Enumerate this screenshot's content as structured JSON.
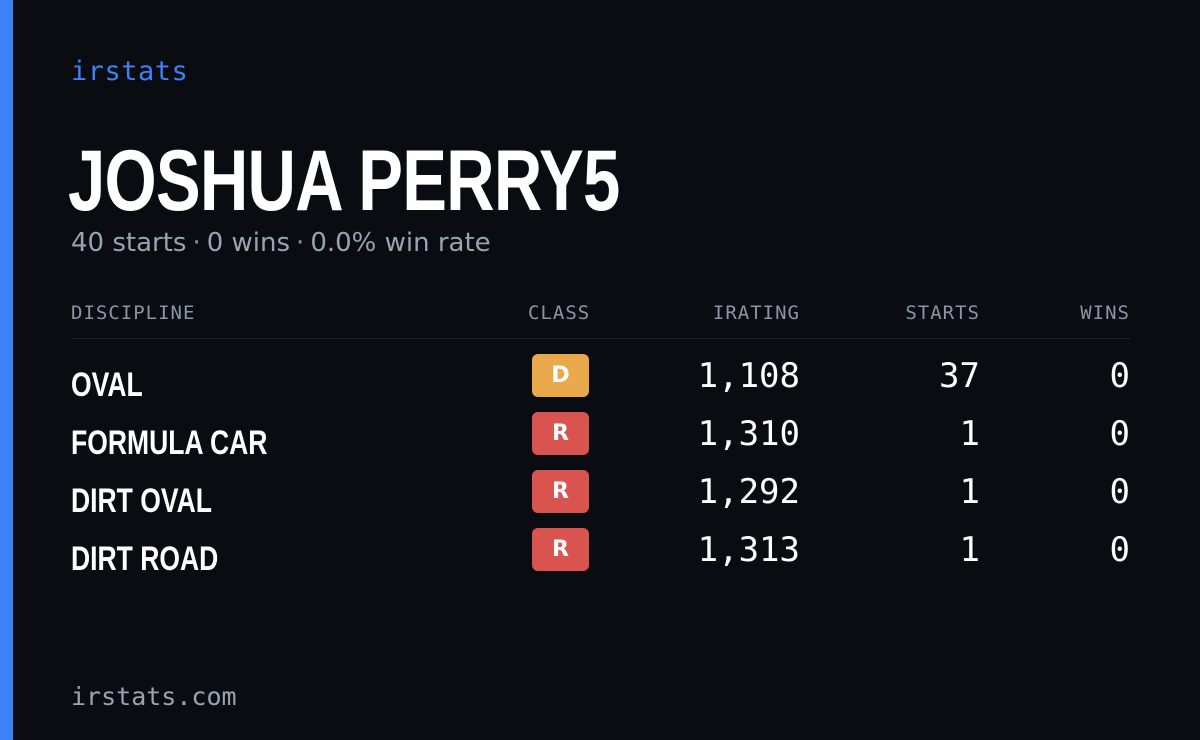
{
  "brand": "irstats",
  "player": {
    "name": "JOSHUA PERRY5",
    "starts": "40 starts",
    "wins": "0 wins",
    "win_rate": "0.0% win rate",
    "separator": "·"
  },
  "table": {
    "headers": {
      "discipline": "DISCIPLINE",
      "class": "CLASS",
      "irating": "IRATING",
      "starts": "STARTS",
      "wins": "WINS"
    },
    "rows": [
      {
        "discipline": "OVAL",
        "class": "D",
        "class_color": "#e9a94b",
        "irating": "1,108",
        "starts": "37",
        "wins": "0"
      },
      {
        "discipline": "FORMULA CAR",
        "class": "R",
        "class_color": "#d9534f",
        "irating": "1,310",
        "starts": "1",
        "wins": "0"
      },
      {
        "discipline": "DIRT OVAL",
        "class": "R",
        "class_color": "#d9534f",
        "irating": "1,292",
        "starts": "1",
        "wins": "0"
      },
      {
        "discipline": "DIRT ROAD",
        "class": "R",
        "class_color": "#d9534f",
        "irating": "1,313",
        "starts": "1",
        "wins": "0"
      }
    ]
  },
  "footer": "irstats.com",
  "colors": {
    "accent": "#3b82f6",
    "background": "#0a0c12"
  }
}
